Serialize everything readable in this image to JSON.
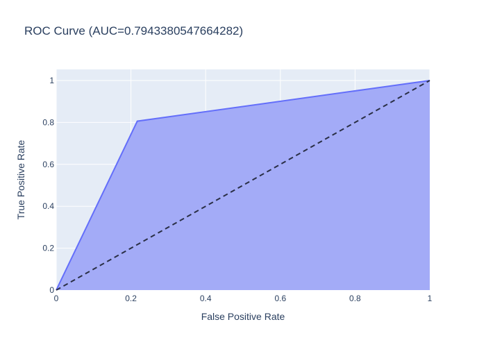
{
  "chart_data": {
    "type": "area",
    "title": "ROC Curve (AUC=0.7943380547664282)",
    "xlabel": "False Positive Rate",
    "ylabel": "True Positive Rate",
    "xlim": [
      0,
      1
    ],
    "ylim": [
      0,
      1
    ],
    "x_ticks": [
      0,
      0.2,
      0.4,
      0.6,
      0.8,
      1
    ],
    "x_tick_labels": [
      "0",
      "0.2",
      "0.4",
      "0.6",
      "0.8",
      "1"
    ],
    "y_ticks": [
      0,
      0.2,
      0.4,
      0.6,
      0.8,
      1
    ],
    "y_tick_labels": [
      "0",
      "0.2",
      "0.4",
      "0.6",
      "0.8",
      "1"
    ],
    "grid": true,
    "series": [
      {
        "type": "area",
        "x": [
          0,
          0.217,
          1
        ],
        "y": [
          0,
          0.806,
          1
        ],
        "line_color": "#636efa",
        "fill_color": "#a3abf7"
      },
      {
        "type": "line",
        "style": "dashed",
        "x": [
          0,
          1
        ],
        "y": [
          0,
          1
        ],
        "line_color": "#2a2f45"
      }
    ]
  },
  "colors": {
    "plot_background": "#e5ecf6",
    "grid": "#ffffff",
    "text": "#2a3f5f"
  }
}
